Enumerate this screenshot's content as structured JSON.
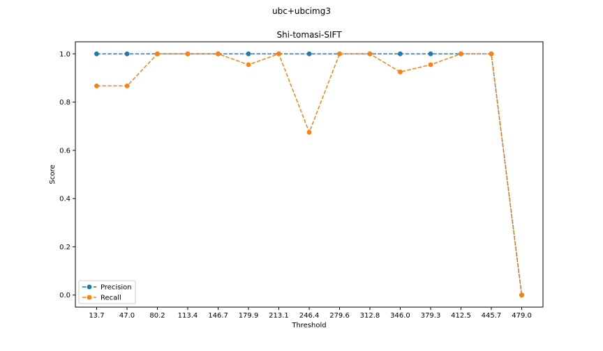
{
  "figure": {
    "suptitle": "ubc+ubcimg3"
  },
  "chart_data": {
    "type": "line",
    "title": "Shi-tomasi-SIFT",
    "xlabel": "Threshold",
    "ylabel": "Score",
    "categories": [
      "13.7",
      "47.0",
      "80.2",
      "113.4",
      "146.7",
      "179.9",
      "213.1",
      "246.4",
      "279.6",
      "312.8",
      "346.0",
      "379.3",
      "412.5",
      "445.7",
      "479.0"
    ],
    "x": [
      13.7,
      47.0,
      80.2,
      113.4,
      146.7,
      179.9,
      213.1,
      246.4,
      279.6,
      312.8,
      346.0,
      379.3,
      412.5,
      445.7,
      479.0
    ],
    "ylim": [
      -0.05,
      1.05
    ],
    "yticks": [
      "0.0",
      "0.2",
      "0.4",
      "0.6",
      "0.8",
      "1.0"
    ],
    "grid": false,
    "legend_position": "lower-left",
    "series": [
      {
        "name": "Precision",
        "color": "#1f77b4",
        "values": [
          1.0,
          1.0,
          1.0,
          1.0,
          1.0,
          1.0,
          1.0,
          1.0,
          1.0,
          1.0,
          1.0,
          1.0,
          1.0,
          1.0,
          0.0
        ]
      },
      {
        "name": "Recall",
        "color": "#ff7f0e",
        "values": [
          0.867,
          0.867,
          1.0,
          1.0,
          1.0,
          0.955,
          1.0,
          0.675,
          1.0,
          1.0,
          0.925,
          0.955,
          1.0,
          1.0,
          0.0
        ]
      }
    ]
  }
}
